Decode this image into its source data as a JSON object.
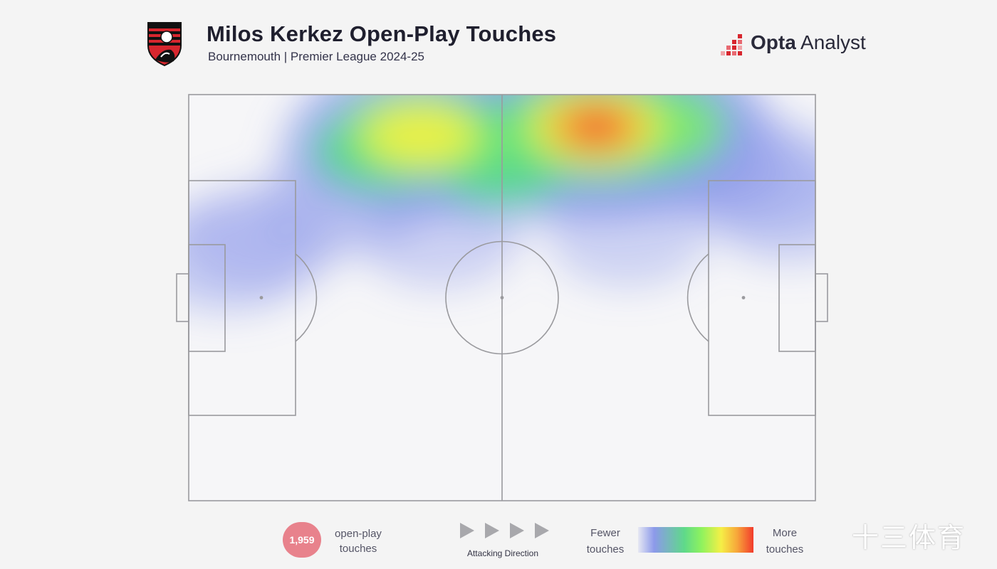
{
  "header": {
    "title": "Milos Kerkez Open-Play Touches",
    "subtitle": "Bournemouth | Premier League 2024-25",
    "club_crest": "afc-bournemouth-crest-icon",
    "brand_bold": "Opta",
    "brand_light": " Analyst"
  },
  "chart_data": {
    "type": "heatmap",
    "title": "Milos Kerkez Open-Play Touches",
    "subtitle": "Bournemouth | Premier League 2024-25",
    "surface": "football pitch",
    "attacking_direction": "left-to-right",
    "density_hotspots": [
      {
        "x": 0.37,
        "y": 0.1,
        "intensity": 0.72
      },
      {
        "x": 0.42,
        "y": 0.11,
        "intensity": 0.55
      },
      {
        "x": 0.31,
        "y": 0.14,
        "intensity": 0.4
      },
      {
        "x": 0.65,
        "y": 0.08,
        "intensity": 1.0
      },
      {
        "x": 0.72,
        "y": 0.08,
        "intensity": 0.78
      },
      {
        "x": 0.57,
        "y": 0.1,
        "intensity": 0.5
      },
      {
        "x": 0.5,
        "y": 0.18,
        "intensity": 0.3
      },
      {
        "x": 0.82,
        "y": 0.16,
        "intensity": 0.28
      },
      {
        "x": 0.92,
        "y": 0.2,
        "intensity": 0.22
      },
      {
        "x": 0.96,
        "y": 0.28,
        "intensity": 0.18
      },
      {
        "x": 0.25,
        "y": 0.26,
        "intensity": 0.18
      },
      {
        "x": 0.06,
        "y": 0.4,
        "intensity": 0.2
      },
      {
        "x": 0.12,
        "y": 0.35,
        "intensity": 0.14
      },
      {
        "x": 0.4,
        "y": 0.35,
        "intensity": 0.1
      },
      {
        "x": 0.7,
        "y": 0.35,
        "intensity": 0.08
      }
    ]
  },
  "legend": {
    "count_value": "1,959",
    "count_label_line1": "open-play",
    "count_label_line2": "touches",
    "direction_label": "Attacking Direction",
    "scale_low_line1": "Fewer",
    "scale_low_line2": "touches",
    "scale_high_line1": "More",
    "scale_high_line2": "touches",
    "badge_color": "#e8828c"
  },
  "watermark": "十三体育"
}
